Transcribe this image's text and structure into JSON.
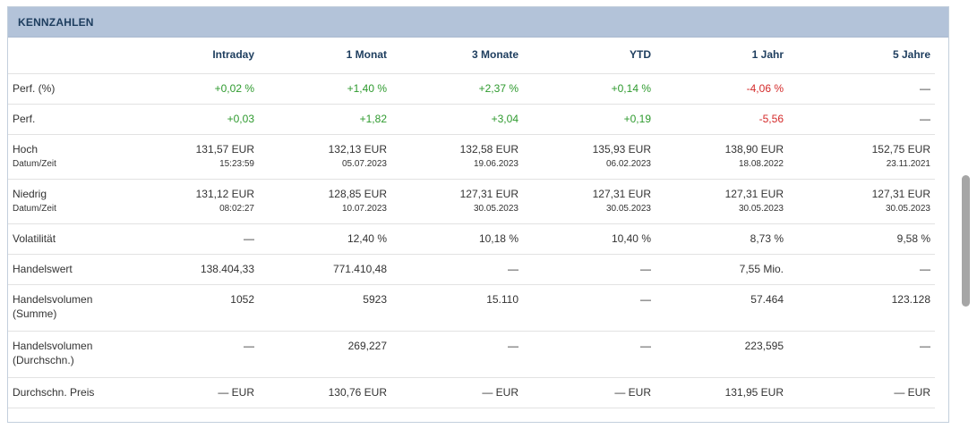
{
  "panel": {
    "title": "KENNZAHLEN"
  },
  "colors": {
    "positive": "#2e9a2e",
    "negative": "#d42a2a",
    "header_bg": "#b3c3d9",
    "header_text": "#1d3d5e"
  },
  "columns": [
    "",
    "Intraday",
    "1 Monat",
    "3 Monate",
    "YTD",
    "1 Jahr",
    "5 Jahre"
  ],
  "rows": [
    {
      "label": "Perf. (%)",
      "values": [
        "+0,02 %",
        "+1,40 %",
        "+2,37 %",
        "+0,14 %",
        "-4,06 %",
        "—"
      ],
      "tones": [
        "pos",
        "pos",
        "pos",
        "pos",
        "neg",
        ""
      ]
    },
    {
      "label": "Perf.",
      "values": [
        "+0,03",
        "+1,82",
        "+3,04",
        "+0,19",
        "-5,56",
        "—"
      ],
      "tones": [
        "pos",
        "pos",
        "pos",
        "pos",
        "neg",
        ""
      ]
    },
    {
      "label": "Hoch",
      "sublabel": "Datum/Zeit",
      "values": [
        "131,57 EUR",
        "132,13 EUR",
        "132,58 EUR",
        "135,93 EUR",
        "138,90 EUR",
        "152,75 EUR"
      ],
      "subvalues": [
        "15:23:59",
        "05.07.2023",
        "19.06.2023",
        "06.02.2023",
        "18.08.2022",
        "23.11.2021"
      ]
    },
    {
      "label": "Niedrig",
      "sublabel": "Datum/Zeit",
      "values": [
        "131,12 EUR",
        "128,85 EUR",
        "127,31 EUR",
        "127,31 EUR",
        "127,31 EUR",
        "127,31 EUR"
      ],
      "subvalues": [
        "08:02:27",
        "10.07.2023",
        "30.05.2023",
        "30.05.2023",
        "30.05.2023",
        "30.05.2023"
      ]
    },
    {
      "label": "Volatilität",
      "values": [
        "—",
        "12,40 %",
        "10,18 %",
        "10,40 %",
        "8,73 %",
        "9,58 %"
      ]
    },
    {
      "label": "Handelswert",
      "values": [
        "138.404,33",
        "771.410,48",
        "—",
        "—",
        "7,55 Mio.",
        "—"
      ]
    },
    {
      "label": "Handelsvolumen",
      "label2": "(Summe)",
      "values": [
        "1052",
        "5923",
        "15.110",
        "—",
        "57.464",
        "123.128"
      ]
    },
    {
      "label": "Handelsvolumen",
      "label2": "(Durchschn.)",
      "values": [
        "—",
        "269,227",
        "—",
        "—",
        "223,595",
        "—"
      ]
    },
    {
      "label": "Durchschn. Preis",
      "values": [
        "— EUR",
        "130,76 EUR",
        "— EUR",
        "— EUR",
        "131,95 EUR",
        "— EUR"
      ]
    }
  ]
}
